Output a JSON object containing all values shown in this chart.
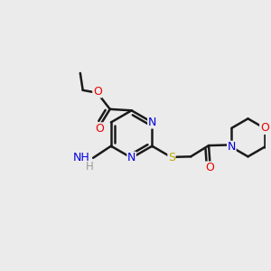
{
  "bg_color": "#ebebeb",
  "bond_color": "#1a1a1a",
  "bond_width": 1.8,
  "atom_colors": {
    "N": "#0000dd",
    "O": "#ee0000",
    "S": "#bbaa00",
    "H": "#999999"
  },
  "figsize": [
    3.0,
    3.0
  ],
  "dpi": 100
}
